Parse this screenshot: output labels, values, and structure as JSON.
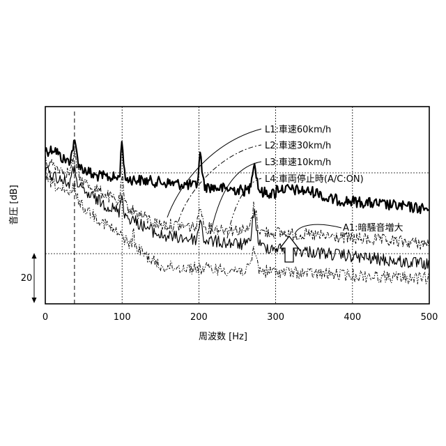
{
  "chart_data": {
    "type": "line",
    "title": "",
    "xlabel": "周波数 [Hz]",
    "ylabel": "音圧 [dB]",
    "xlim": [
      0,
      500
    ],
    "x_ticks": [
      "0",
      "100",
      "200",
      "300",
      "400",
      "500"
    ],
    "grid": true,
    "scale_bar": {
      "label": "20",
      "unit_db": 20
    },
    "series": [
      {
        "name": "L1:車速60km/h",
        "style": "thick-solid",
        "color": "#000000"
      },
      {
        "name": "L2:車速30km/h",
        "style": "dash-dot",
        "color": "#000000"
      },
      {
        "name": "L3:車速10km/h",
        "style": "solid",
        "color": "#000000"
      },
      {
        "name": "L4:車両停止時(A/C:ON)",
        "style": "dash-dot-dot",
        "color": "#000000"
      }
    ],
    "annotations": [
      {
        "label": "A1:暗騒音増大",
        "type": "arrow-up"
      }
    ]
  }
}
